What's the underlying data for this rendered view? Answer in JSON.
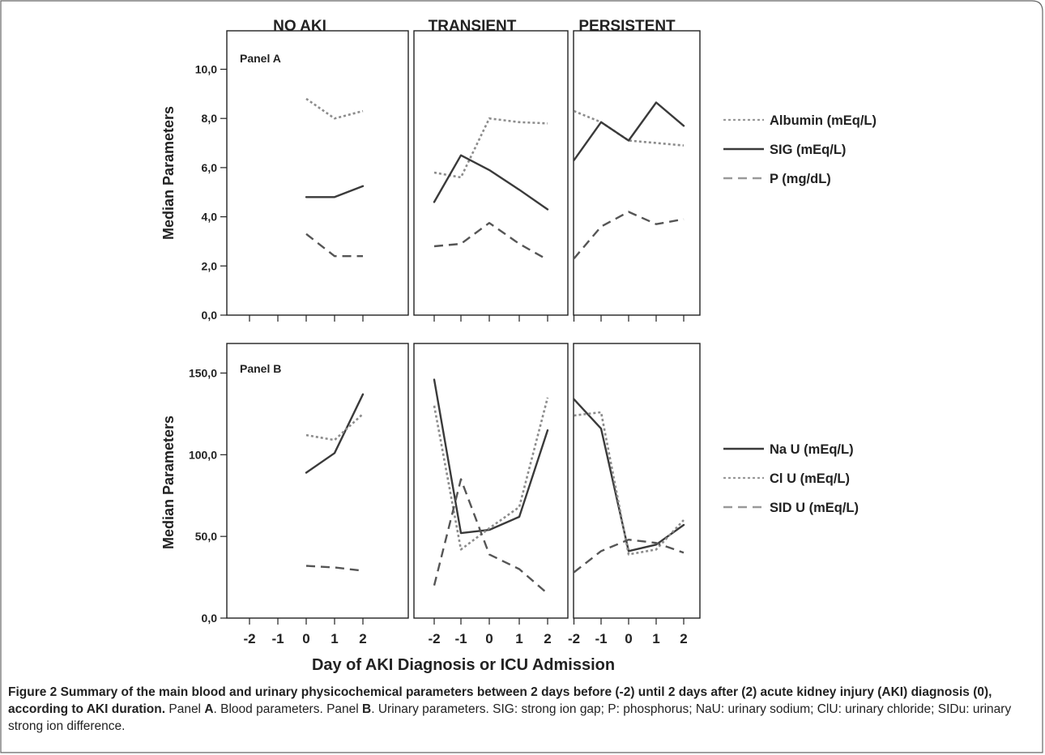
{
  "chart_data": [
    {
      "type": "line",
      "panel_label": "Panel A",
      "ylabel": "Median Parameters",
      "ylim": [
        0,
        11
      ],
      "y_ticks": [
        "0,0",
        "2,0",
        "4,0",
        "6,0",
        "8,0",
        "10,0"
      ],
      "y_tick_values": [
        0,
        2,
        4,
        6,
        8,
        10
      ],
      "x_ticks": [
        "-2",
        "-1",
        "0",
        "1",
        "2"
      ],
      "x_tick_values": [
        -2,
        -1,
        0,
        1,
        2
      ],
      "facets": [
        "NO AKI",
        "TRANSIENT",
        "PERSISTENT"
      ],
      "legend": [
        {
          "name": "Albumin (mEq/L)",
          "style": "dotted"
        },
        {
          "name": "SIG (mEq/L)",
          "style": "solid"
        },
        {
          "name": "P (mg/dL)",
          "style": "dashed"
        }
      ],
      "series": [
        {
          "facet": "NO AKI",
          "name": "Albumin (mEq/L)",
          "x": [
            0,
            1,
            2
          ],
          "values": [
            8.8,
            8.0,
            8.3
          ]
        },
        {
          "facet": "NO AKI",
          "name": "SIG (mEq/L)",
          "x": [
            0,
            1,
            2
          ],
          "values": [
            4.8,
            4.8,
            5.25
          ]
        },
        {
          "facet": "NO AKI",
          "name": "P (mg/dL)",
          "x": [
            0,
            1,
            2
          ],
          "values": [
            3.3,
            2.4,
            2.4
          ]
        },
        {
          "facet": "TRANSIENT",
          "name": "Albumin (mEq/L)",
          "x": [
            -2,
            -1,
            0,
            1,
            2
          ],
          "values": [
            5.8,
            5.6,
            8.0,
            7.85,
            7.8
          ]
        },
        {
          "facet": "TRANSIENT",
          "name": "SIG (mEq/L)",
          "x": [
            -2,
            -1,
            0,
            1,
            2
          ],
          "values": [
            4.6,
            6.5,
            5.9,
            5.1,
            4.3
          ]
        },
        {
          "facet": "TRANSIENT",
          "name": "P (mg/dL)",
          "x": [
            -2,
            -1,
            0,
            1,
            2
          ],
          "values": [
            2.8,
            2.9,
            3.75,
            2.9,
            2.25
          ]
        },
        {
          "facet": "PERSISTENT",
          "name": "Albumin (mEq/L)",
          "x": [
            -2,
            -1,
            0,
            1,
            2
          ],
          "values": [
            8.3,
            7.85,
            7.1,
            7.0,
            6.9
          ]
        },
        {
          "facet": "PERSISTENT",
          "name": "SIG (mEq/L)",
          "x": [
            -2,
            -1,
            0,
            1,
            2
          ],
          "values": [
            6.3,
            7.85,
            7.1,
            8.65,
            7.7
          ]
        },
        {
          "facet": "PERSISTENT",
          "name": "P (mg/dL)",
          "x": [
            -2,
            -1,
            0,
            1,
            2
          ],
          "values": [
            2.3,
            3.6,
            4.2,
            3.7,
            3.9
          ]
        }
      ]
    },
    {
      "type": "line",
      "panel_label": "Panel B",
      "ylabel": "Median Parameters",
      "xlabel": "Day of AKI Diagnosis or ICU Admission",
      "ylim": [
        0,
        168
      ],
      "y_ticks": [
        "0,0",
        "50,0",
        "100,0",
        "150,0"
      ],
      "y_tick_values": [
        0,
        50,
        100,
        150
      ],
      "x_ticks": [
        "-2",
        "-1",
        "0",
        "1",
        "2"
      ],
      "x_tick_values": [
        -2,
        -1,
        0,
        1,
        2
      ],
      "facets": [
        "NO AKI",
        "TRANSIENT",
        "PERSISTENT"
      ],
      "legend": [
        {
          "name": "Na U (mEq/L)",
          "style": "solid"
        },
        {
          "name": "Cl U (mEq/L)",
          "style": "dotted"
        },
        {
          "name": "SID U (mEq/L)",
          "style": "dashed"
        }
      ],
      "series": [
        {
          "facet": "NO AKI",
          "name": "Na U (mEq/L)",
          "x": [
            0,
            1,
            2
          ],
          "values": [
            89,
            101,
            137
          ]
        },
        {
          "facet": "NO AKI",
          "name": "Cl U (mEq/L)",
          "x": [
            0,
            1,
            2
          ],
          "values": [
            112,
            109,
            125
          ]
        },
        {
          "facet": "NO AKI",
          "name": "SID U (mEq/L)",
          "x": [
            0,
            1,
            2
          ],
          "values": [
            32,
            31,
            29
          ]
        },
        {
          "facet": "TRANSIENT",
          "name": "Na U (mEq/L)",
          "x": [
            -2,
            -1,
            0,
            1,
            2
          ],
          "values": [
            146,
            52,
            54,
            62,
            115
          ]
        },
        {
          "facet": "TRANSIENT",
          "name": "Cl U (mEq/L)",
          "x": [
            -2,
            -1,
            0,
            1,
            2
          ],
          "values": [
            130,
            42,
            55,
            68,
            135
          ]
        },
        {
          "facet": "TRANSIENT",
          "name": "SID U (mEq/L)",
          "x": [
            -2,
            -1,
            0,
            1,
            2
          ],
          "values": [
            20,
            85,
            39,
            30,
            15
          ]
        },
        {
          "facet": "PERSISTENT",
          "name": "Na U (mEq/L)",
          "x": [
            -2,
            -1,
            0,
            1,
            2
          ],
          "values": [
            134,
            116,
            41,
            45,
            57
          ]
        },
        {
          "facet": "PERSISTENT",
          "name": "Cl U (mEq/L)",
          "x": [
            -2,
            -1,
            0,
            1,
            2
          ],
          "values": [
            124,
            126,
            39,
            42,
            60
          ]
        },
        {
          "facet": "PERSISTENT",
          "name": "SID U (mEq/L)",
          "x": [
            -2,
            -1,
            0,
            1,
            2
          ],
          "values": [
            28,
            41,
            48,
            46,
            40
          ]
        }
      ]
    }
  ],
  "caption": {
    "title": "Figure 2 Summary of the main blood and urinary physicochemical parameters between 2 days before (-2) until 2 days after (2) acute kidney injury (AKI) diagnosis (0), according to AKI duration.",
    "text_1": "Panel ",
    "panel_a": "A",
    "text_2": ". Blood parameters. Panel ",
    "panel_b": "B",
    "text_3": ". Urinary parameters. SIG: strong ion gap; P: phosphorus; NaU: urinary sodium; ClU: urinary chloride; SIDu: urinary strong ion difference."
  }
}
